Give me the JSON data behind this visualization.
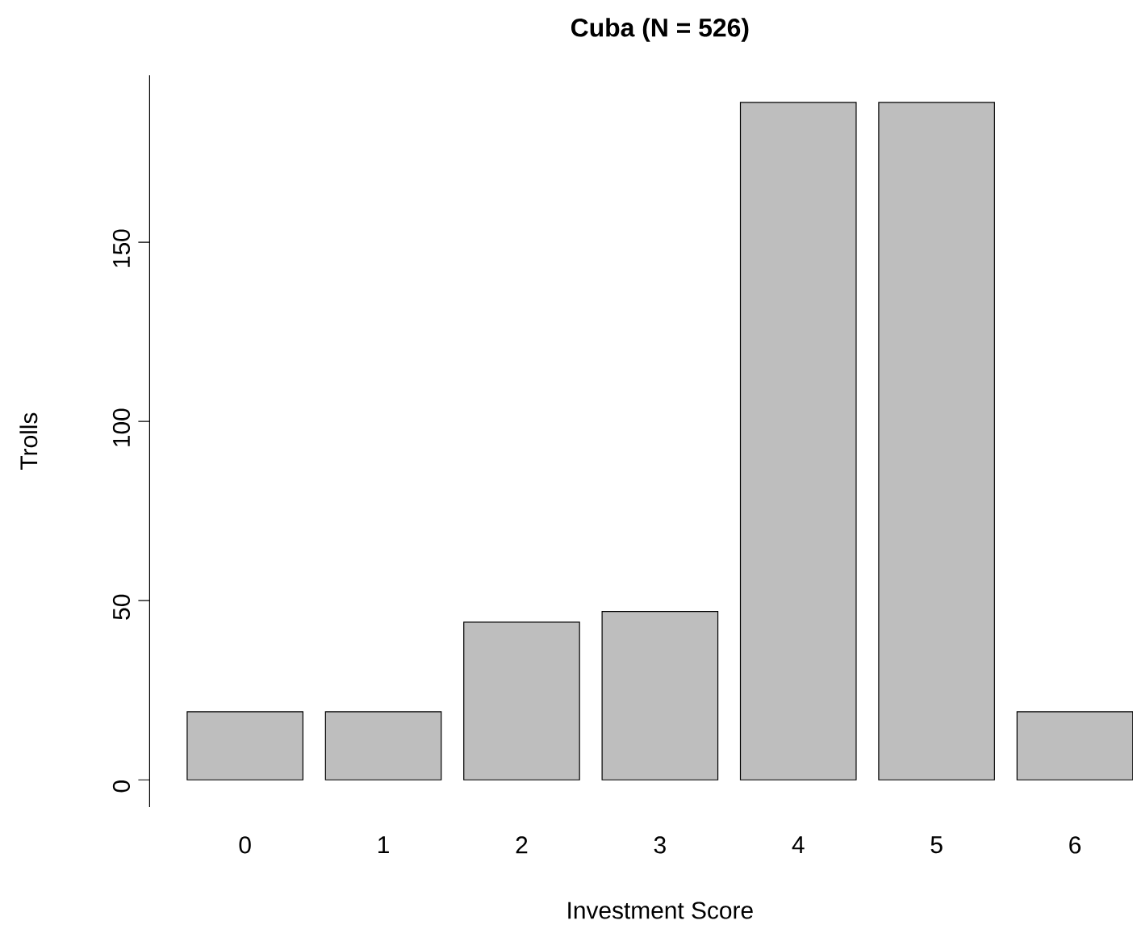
{
  "chart_data": {
    "type": "bar",
    "title": "Cuba (N = 526)",
    "xlabel": "Investment Score",
    "ylabel": "Trolls",
    "categories": [
      "0",
      "1",
      "2",
      "3",
      "4",
      "5",
      "6"
    ],
    "values": [
      19,
      19,
      44,
      47,
      189,
      189,
      19
    ],
    "color": "#bebebe",
    "ylim": [
      -7.6,
      196.6
    ],
    "yticks": [
      0,
      50,
      100,
      150
    ]
  }
}
